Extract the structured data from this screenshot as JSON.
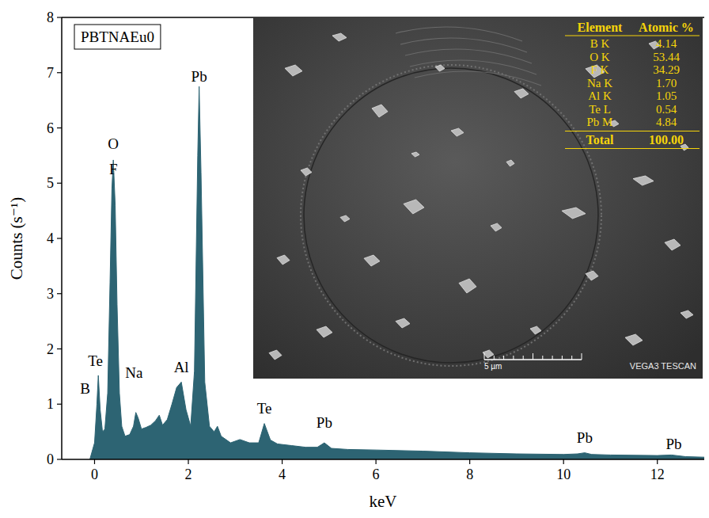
{
  "chart_data": {
    "type": "area",
    "label": "PBTNAEu0",
    "x_label": "keV",
    "y_label": "Counts (s⁻¹)",
    "color": "#2d6473",
    "x": [
      -0.1,
      0.0,
      0.05,
      0.08,
      0.12,
      0.17,
      0.22,
      0.28,
      0.33,
      0.37,
      0.4,
      0.44,
      0.48,
      0.53,
      0.58,
      0.65,
      0.75,
      0.83,
      0.88,
      0.93,
      1.0,
      1.1,
      1.2,
      1.3,
      1.38,
      1.45,
      1.55,
      1.65,
      1.75,
      1.85,
      1.95,
      2.05,
      2.13,
      2.2,
      2.23,
      2.27,
      2.35,
      2.45,
      2.55,
      2.62,
      2.7,
      2.9,
      3.1,
      3.3,
      3.5,
      3.62,
      3.75,
      3.9,
      4.2,
      4.5,
      4.75,
      4.9,
      5.05,
      5.4,
      6.0,
      7.0,
      8.0,
      9.0,
      10.0,
      10.3,
      10.45,
      10.6,
      11.0,
      12.0,
      12.3,
      12.6,
      13.0
    ],
    "values": [
      0,
      0.3,
      1.0,
      1.52,
      0.9,
      0.5,
      0.55,
      1.2,
      3.2,
      4.9,
      5.42,
      4.6,
      2.8,
      1.2,
      0.6,
      0.42,
      0.45,
      0.6,
      0.85,
      0.75,
      0.55,
      0.58,
      0.62,
      0.7,
      0.8,
      0.62,
      0.72,
      1.0,
      1.3,
      1.4,
      0.9,
      0.6,
      1.6,
      5.5,
      6.75,
      5.2,
      1.4,
      0.6,
      0.5,
      0.6,
      0.42,
      0.3,
      0.36,
      0.3,
      0.3,
      0.65,
      0.35,
      0.28,
      0.25,
      0.22,
      0.22,
      0.3,
      0.2,
      0.18,
      0.17,
      0.15,
      0.12,
      0.1,
      0.09,
      0.1,
      0.12,
      0.09,
      0.08,
      0.07,
      0.08,
      0.05,
      0.04
    ],
    "xlim": [
      -0.7,
      13
    ],
    "ylim": [
      0,
      8
    ],
    "xticks": [
      0,
      2,
      4,
      6,
      8,
      10,
      12
    ],
    "yticks": [
      0,
      1,
      2,
      3,
      4,
      5,
      6,
      7,
      8
    ],
    "annotations": [
      {
        "text": "B",
        "x": -0.2,
        "y": 1.19
      },
      {
        "text": "Te",
        "x": 0.02,
        "y": 1.69
      },
      {
        "text": "O",
        "x": 0.4,
        "y": 5.62
      },
      {
        "text": "F",
        "x": 0.4,
        "y": 5.16
      },
      {
        "text": "Na",
        "x": 0.84,
        "y": 1.48
      },
      {
        "text": "Al",
        "x": 1.85,
        "y": 1.58
      },
      {
        "text": "Pb",
        "x": 2.23,
        "y": 6.84
      },
      {
        "text": "Te",
        "x": 3.62,
        "y": 0.83
      },
      {
        "text": "Pb",
        "x": 4.9,
        "y": 0.57
      },
      {
        "text": "Pb",
        "x": 10.45,
        "y": 0.3
      },
      {
        "text": "Pb",
        "x": 12.35,
        "y": 0.18
      }
    ],
    "inset": {
      "scale_bar": "5 µm",
      "instrument": "VEGA3 TESCAN",
      "table": {
        "columns": [
          "Element",
          "Atomic %"
        ],
        "rows": [
          [
            "B K",
            "4.14"
          ],
          [
            "O K",
            "53.44"
          ],
          [
            "F K",
            "34.29"
          ],
          [
            "Na K",
            "1.70"
          ],
          [
            "Al K",
            "1.05"
          ],
          [
            "Te L",
            "0.54"
          ],
          [
            "Pb M",
            "4.84"
          ]
        ],
        "total": [
          "Total",
          "100.00"
        ]
      }
    }
  }
}
